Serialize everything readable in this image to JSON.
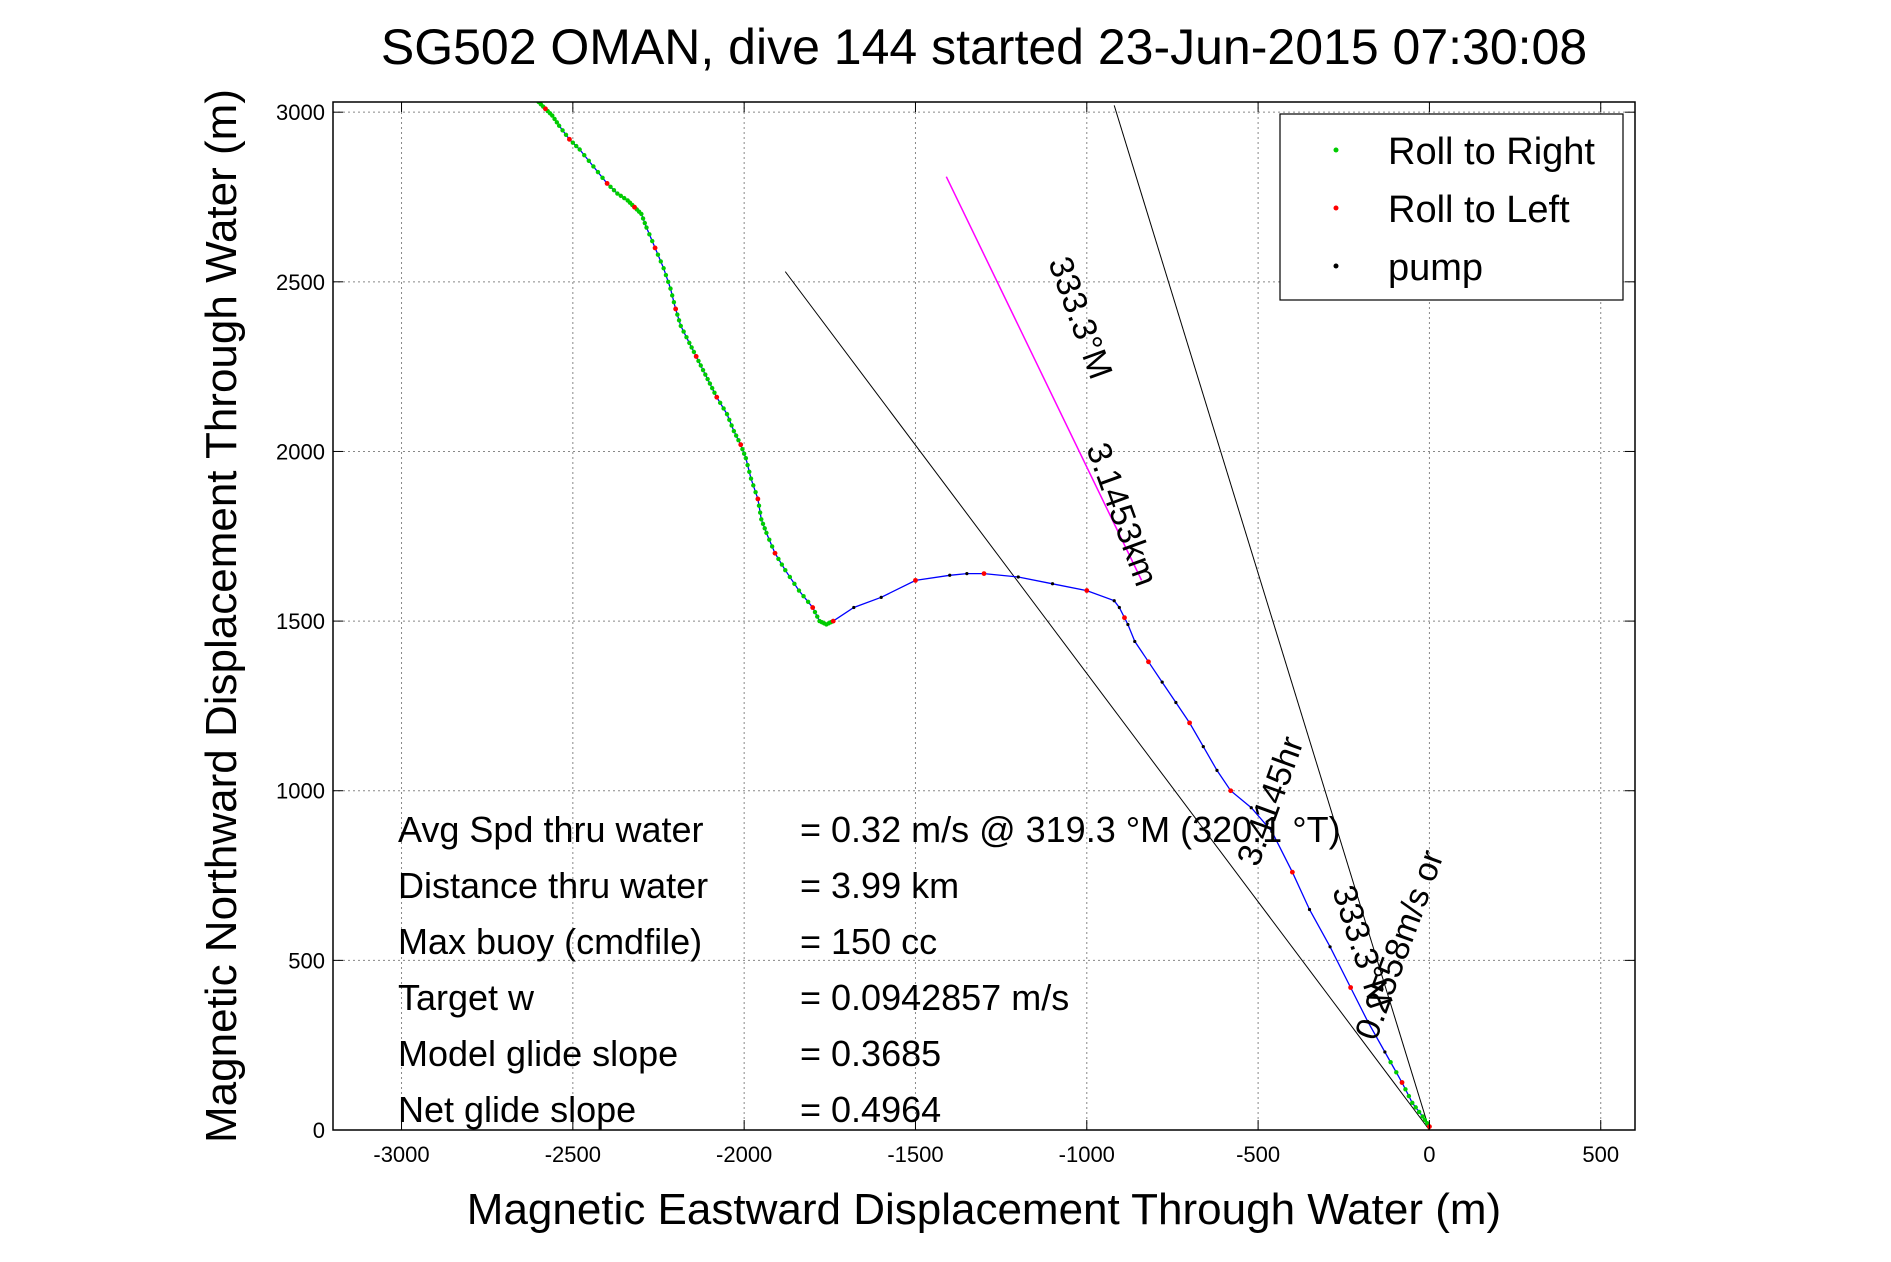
{
  "chart_data": {
    "type": "line",
    "title": "SG502 OMAN, dive 144 started 23-Jun-2015 07:30:08",
    "xlabel": "Magnetic Eastward Displacement Through Water (m)",
    "ylabel": "Magnetic Northward Displacement Through Water (m)",
    "xlim": [
      -3200,
      600
    ],
    "ylim": [
      0,
      3030
    ],
    "xticks": [
      -3000,
      -2500,
      -2000,
      -1500,
      -1000,
      -500,
      0,
      500
    ],
    "yticks": [
      0,
      500,
      1000,
      1500,
      2000,
      2500,
      3000
    ],
    "grid": true,
    "legend_position": "top-right",
    "colors": {
      "track": "#0000ff",
      "roll_right": "#00cc00",
      "roll_left": "#ff0000",
      "pump": "#000000",
      "course": "#ff00ff",
      "guides": "#000000"
    },
    "legend": [
      {
        "label": "Roll to Right",
        "color": "#00cc00"
      },
      {
        "label": "Roll to Left",
        "color": "#ff0000"
      },
      {
        "label": "pump",
        "color": "#000000"
      }
    ],
    "track": {
      "x": [
        0,
        -20,
        -50,
        -80,
        -130,
        -180,
        -230,
        -290,
        -350,
        -400,
        -460,
        -520,
        -580,
        -620,
        -660,
        -700,
        -740,
        -780,
        -820,
        -860,
        -880,
        -890,
        -905,
        -920,
        -1000,
        -1100,
        -1200,
        -1300,
        -1350,
        -1400,
        -1500,
        -1600,
        -1680,
        -1740,
        -1760,
        -1780,
        -1800,
        -1840,
        -1880,
        -1910,
        -1935,
        -1950,
        -1960,
        -1980,
        -1995,
        -2010,
        -2030,
        -2050,
        -2080,
        -2100,
        -2120,
        -2140,
        -2160,
        -2185,
        -2200,
        -2215,
        -2235,
        -2260,
        -2285,
        -2300,
        -2320,
        -2340,
        -2370,
        -2400,
        -2440,
        -2480,
        -2510,
        -2540,
        -2560,
        -2580,
        -2600,
        -2620,
        -2650
      ],
      "y": [
        10,
        40,
        80,
        140,
        230,
        320,
        420,
        540,
        650,
        760,
        880,
        950,
        1000,
        1060,
        1130,
        1200,
        1260,
        1320,
        1380,
        1440,
        1490,
        1510,
        1540,
        1560,
        1590,
        1610,
        1630,
        1640,
        1640,
        1635,
        1620,
        1570,
        1540,
        1500,
        1490,
        1500,
        1540,
        1590,
        1650,
        1700,
        1760,
        1800,
        1860,
        1920,
        1980,
        2020,
        2060,
        2110,
        2160,
        2200,
        2240,
        2280,
        2320,
        2370,
        2420,
        2480,
        2540,
        2600,
        2660,
        2700,
        2720,
        2740,
        2760,
        2790,
        2840,
        2890,
        2920,
        2960,
        2990,
        3010,
        3030,
        3050,
        3080
      ]
    },
    "course_line": {
      "x": [
        -1410,
        -840
      ],
      "y": [
        2810,
        1620
      ]
    },
    "guide_lines": [
      {
        "x": [
          0,
          -1880
        ],
        "y": [
          0,
          2530
        ]
      },
      {
        "x": [
          0,
          -920
        ],
        "y": [
          0,
          3020
        ]
      }
    ],
    "annotations": [
      {
        "text": "333.3°M"
      },
      {
        "text": "3.1453km"
      },
      {
        "text": "3.4145hr"
      },
      {
        "text": "0.2558m/s or"
      },
      {
        "text": "333.3°M"
      }
    ],
    "stats": [
      {
        "label": "Avg Spd thru water",
        "value": "=  0.32 m/s @ 319.3 °M (320.1 °T)"
      },
      {
        "label": "Distance thru water",
        "value": "=  3.99 km"
      },
      {
        "label": "Max buoy (cmdfile)",
        "value": "= 150 cc"
      },
      {
        "label": "Target w",
        "value": "= 0.0942857 m/s"
      },
      {
        "label": "Model glide slope",
        "value": "= 0.3685"
      },
      {
        "label": "Net glide slope",
        "value": "= 0.4964"
      }
    ]
  }
}
